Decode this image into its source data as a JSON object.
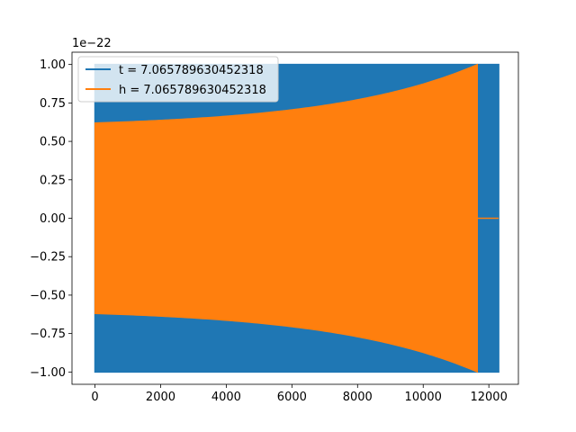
{
  "chart_data": {
    "type": "line",
    "title": "",
    "xlabel": "",
    "ylabel": "",
    "y_scale_label": "1e−22",
    "xlim": [
      -700,
      12900
    ],
    "ylim": [
      -1.08,
      1.08
    ],
    "xticks": [
      0,
      2000,
      4000,
      6000,
      8000,
      10000,
      12000
    ],
    "xtick_labels": [
      "0",
      "2000",
      "4000",
      "6000",
      "8000",
      "10000",
      "12000"
    ],
    "yticks": [
      -1.0,
      -0.75,
      -0.5,
      -0.25,
      0.0,
      0.25,
      0.5,
      0.75,
      1.0
    ],
    "ytick_labels": [
      "−1.00",
      "−0.75",
      "−0.50",
      "−0.25",
      "0.00",
      "0.25",
      "0.50",
      "0.75",
      "1.00"
    ],
    "legend_position": "top-left",
    "grid": false,
    "series": [
      {
        "name": "t = 7.065789630452318",
        "color": "#1f77b4",
        "kind": "oscillating-envelope",
        "x_start": 0,
        "x_end": 12300,
        "envelope_start": 1.0,
        "envelope_end": 1.0,
        "transient_at_start": true,
        "note": "rapid oscillation filling region; upper/lower envelope shown"
      },
      {
        "name": "h = 7.065789630452318",
        "color": "#ff7f0e",
        "kind": "oscillating-envelope",
        "x_start": 0,
        "x_end": 11650,
        "envelope_start": 0.62,
        "envelope_end": 1.0,
        "flat_after": [
          11650,
          12300
        ],
        "flat_value": 0.0
      }
    ]
  }
}
